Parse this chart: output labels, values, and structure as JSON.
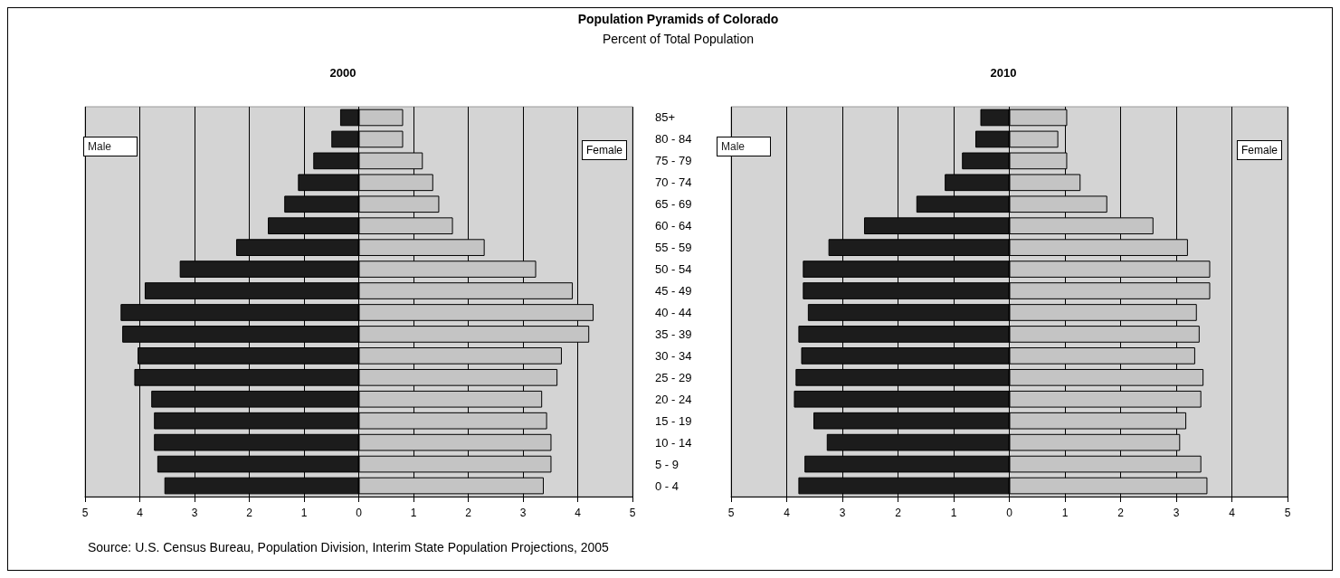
{
  "chart_data": [
    {
      "type": "bar",
      "orientation": "horizontal",
      "title": "Population Pyramids of Colorado",
      "subtitle": "Percent of Total Population",
      "annotations": [
        "2000",
        "Source: U.S. Census Bureau, Population Division, Interim State Population Projections, 2005"
      ],
      "categories": [
        null,
        null,
        null,
        null,
        null,
        null,
        null,
        null,
        null,
        null,
        null,
        null,
        null,
        null,
        null,
        null,
        null,
        null
      ],
      "series": [
        {
          "name": "Male",
          "color": "#1c1c1c",
          "values": [
            -0.34,
            -0.5,
            -0.83,
            -1.11,
            -1.36,
            -1.66,
            -2.24,
            -3.27,
            -3.91,
            -4.35,
            -4.32,
            -4.04,
            -4.1,
            -3.79,
            -3.74,
            -3.74,
            -3.68,
            -3.55
          ]
        },
        {
          "name": "Female",
          "color": "#c4c4c4",
          "values": [
            0.81,
            0.81,
            1.17,
            1.36,
            1.47,
            1.72,
            2.3,
            3.24,
            3.91,
            4.29,
            4.21,
            3.71,
            3.63,
            3.35,
            3.44,
            3.52,
            3.52,
            3.38
          ]
        }
      ],
      "xlim": [
        -5,
        5
      ],
      "xticks": [
        {
          "value": -5,
          "label": "5"
        },
        {
          "value": -4,
          "label": "4"
        },
        {
          "value": -3,
          "label": "3"
        },
        {
          "value": -2,
          "label": "2"
        },
        {
          "value": -1,
          "label": "1"
        },
        0,
        1,
        2,
        3,
        4,
        5
      ],
      "grid": "x",
      "tick_labels": "x",
      "stacked": true
    },
    {
      "type": "bar",
      "orientation": "horizontal",
      "title": "2010",
      "categories": [
        "85+",
        "80 - 84",
        "75 - 79",
        "70 - 74",
        "65 - 69",
        "60 - 64",
        "55 - 59",
        "50 - 54",
        "45 - 49",
        "40 - 44",
        "35 - 39",
        "30 - 34",
        "25 - 29",
        "20 - 24",
        "15 - 19",
        "10 - 14",
        "5 - 9",
        "0 - 4"
      ],
      "series": [
        {
          "name": "Male",
          "color": "#1c1c1c",
          "values": [
            -0.52,
            -0.61,
            -0.85,
            -1.16,
            -1.67,
            -2.61,
            -3.25,
            -3.71,
            -3.71,
            -3.62,
            -3.79,
            -3.74,
            -3.84,
            -3.87,
            -3.52,
            -3.28,
            -3.68,
            -3.79
          ]
        },
        {
          "name": "Female",
          "color": "#c4c4c4",
          "values": [
            1.04,
            0.88,
            1.04,
            1.28,
            1.76,
            2.59,
            3.21,
            3.61,
            3.61,
            3.37,
            3.42,
            3.34,
            3.49,
            3.45,
            3.18,
            3.07,
            3.45,
            3.56
          ]
        }
      ],
      "xlim": [
        -5,
        5
      ],
      "xticks": [
        {
          "value": -5,
          "label": "5"
        },
        {
          "value": -4,
          "label": "4"
        },
        {
          "value": -3,
          "label": "3"
        },
        {
          "value": -2,
          "label": "2"
        },
        {
          "value": -1,
          "label": "1"
        },
        0,
        1,
        2,
        3,
        4,
        5
      ],
      "grid": "x",
      "stacked": true
    }
  ]
}
